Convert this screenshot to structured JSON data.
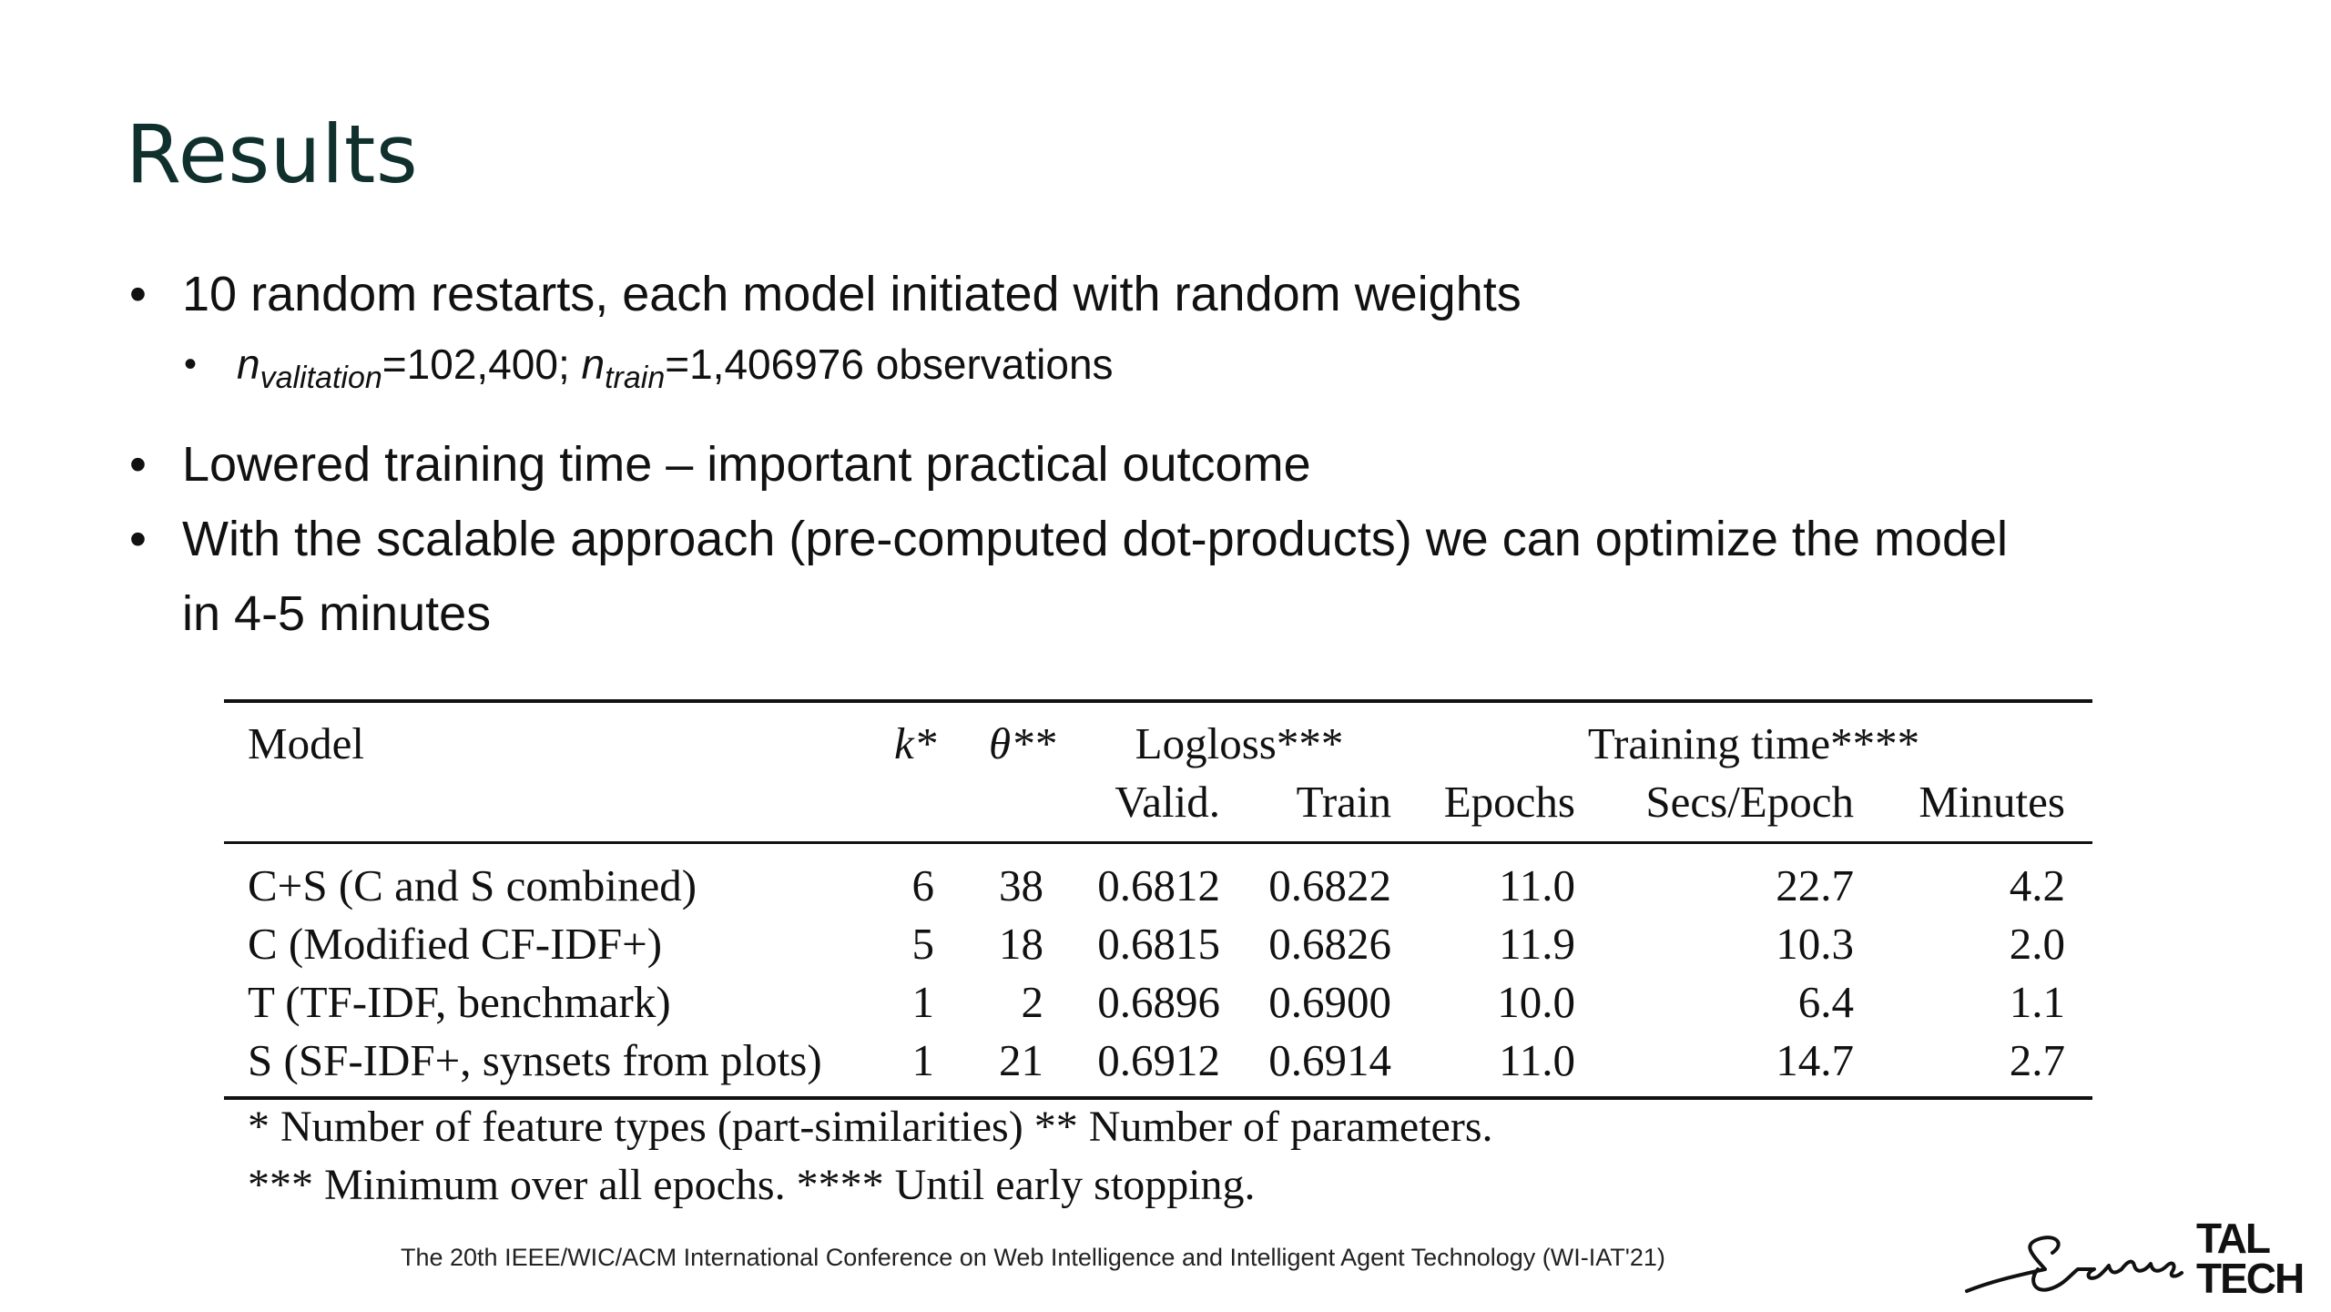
{
  "title": "Results",
  "bullets": {
    "b1": "10 random restarts, each model initiated with random weights",
    "b1_sub": {
      "n1": "n",
      "sub1": "valitation",
      "mid": "=102,400; ",
      "n2": "n",
      "sub2": "train",
      "end": "=1,406976 observations"
    },
    "b2": "Lowered training time – important practical outcome",
    "b3_line1": "With the scalable approach (pre-computed dot-products) we can optimize the model",
    "b3_line2": "in 4-5 minutes"
  },
  "table": {
    "headers": {
      "model": "Model",
      "k": "k*",
      "theta": "θ**",
      "logloss": "Logloss***",
      "training_time": "Training time****",
      "valid": "Valid.",
      "train": "Train",
      "epochs": "Epochs",
      "secs_epoch": "Secs/Epoch",
      "minutes": "Minutes"
    },
    "rows": [
      {
        "model": "C+S (C and S combined)",
        "k": "6",
        "theta": "38",
        "valid": "0.6812",
        "train": "0.6822",
        "epochs": "11.0",
        "secs": "22.7",
        "minutes": "4.2"
      },
      {
        "model": "C (Modified CF-IDF+)",
        "k": "5",
        "theta": "18",
        "valid": "0.6815",
        "train": "0.6826",
        "epochs": "11.9",
        "secs": "10.3",
        "minutes": "2.0"
      },
      {
        "model": "T (TF-IDF, benchmark)",
        "k": "1",
        "theta": "2",
        "valid": "0.6896",
        "train": "0.6900",
        "epochs": "10.0",
        "secs": "6.4",
        "minutes": "1.1"
      },
      {
        "model": "S (SF-IDF+, synsets from plots)",
        "k": "1",
        "theta": "21",
        "valid": "0.6912",
        "train": "0.6914",
        "epochs": "11.0",
        "secs": "14.7",
        "minutes": "2.7"
      }
    ],
    "footnote1": "* Number of feature types (part-similarities) ** Number of parameters.",
    "footnote2": "*** Minimum over all epochs. **** Until early stopping."
  },
  "footer": {
    "conference": "The 20th IEEE/WIC/ACM International Conference on Web Intelligence and Intelligent Agent Technology (WI-IAT'21)",
    "logo_line1": "TAL",
    "logo_line2": "TECH"
  }
}
